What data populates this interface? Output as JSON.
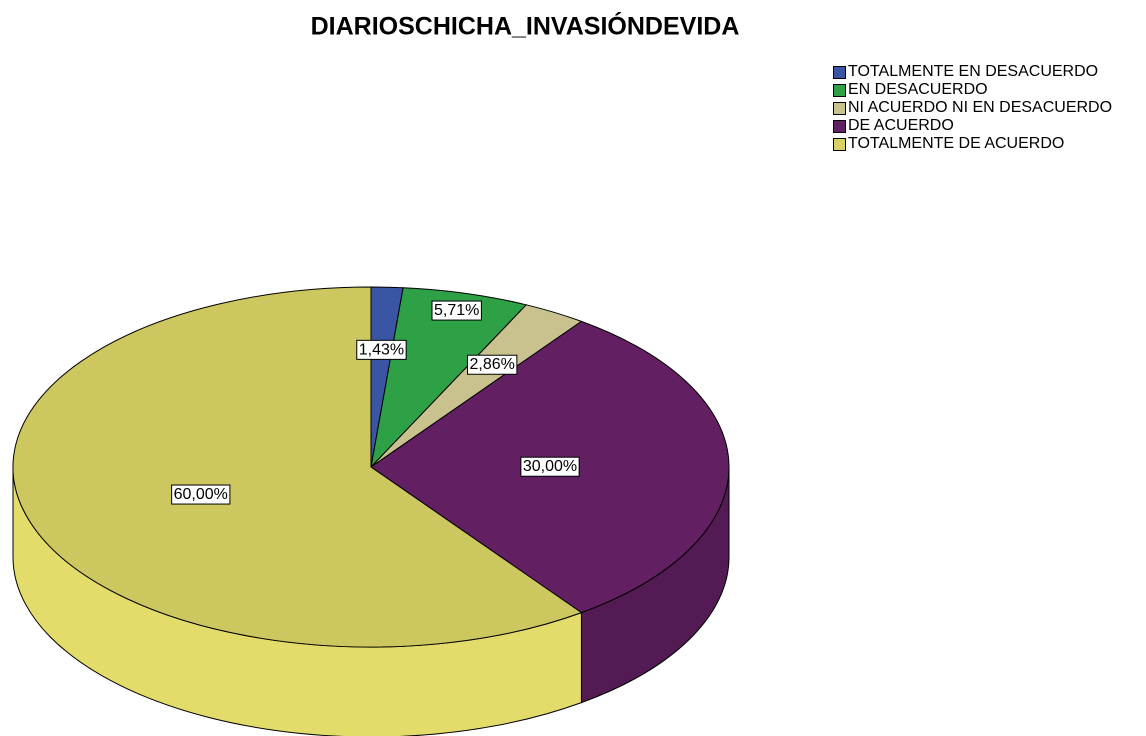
{
  "chart_data": {
    "type": "pie",
    "title": "DIARIOSCHICHA_INVASIÓNDEVIDA",
    "categories": [
      "TOTALMENTE EN DESACUERDO",
      "EN DESACUERDO",
      "NI ACUERDO NI EN DESACUERDO",
      "DE ACUERDO",
      "TOTALMENTE DE ACUERDO"
    ],
    "values": [
      1.43,
      5.71,
      2.86,
      30.0,
      60.0
    ],
    "value_labels": [
      "1,43%",
      "5,71%",
      "2,86%",
      "30,00%",
      "60,00%"
    ],
    "colors": [
      "#3a55a4",
      "#2ea147",
      "#c9c28e",
      "#621f62",
      "#d8d165"
    ],
    "legend": "top-right"
  }
}
